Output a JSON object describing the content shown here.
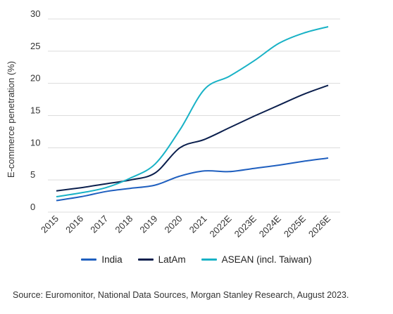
{
  "chart_data": {
    "type": "line",
    "ylabel": "E-commerce penetration (%)",
    "xlabel": "",
    "ylim": [
      0,
      30
    ],
    "yticks": [
      0,
      5,
      10,
      15,
      20,
      25,
      30
    ],
    "categories": [
      "2015",
      "2016",
      "2017",
      "2018",
      "2019",
      "2020",
      "2021",
      "2022E",
      "2023E",
      "2024E",
      "2025E",
      "2026E"
    ],
    "grid": "horizontal",
    "legend_position": "bottom",
    "series": [
      {
        "name": "India",
        "color": "#1f5fbf",
        "values": [
          1.8,
          2.4,
          3.2,
          3.7,
          4.2,
          5.6,
          6.4,
          6.3,
          6.8,
          7.3,
          7.9,
          8.4
        ]
      },
      {
        "name": "LatAm",
        "color": "#0b1f4d",
        "values": [
          3.3,
          3.8,
          4.4,
          5.0,
          6.1,
          10.0,
          11.3,
          13.1,
          14.9,
          16.6,
          18.3,
          19.7
        ]
      },
      {
        "name": "ASEAN (incl. Taiwan)",
        "color": "#19b2c6",
        "values": [
          2.4,
          3.0,
          3.8,
          5.3,
          7.5,
          12.8,
          19.1,
          21.1,
          23.5,
          26.2,
          27.8,
          28.8
        ]
      }
    ]
  },
  "legend": {
    "items": [
      {
        "label": "India",
        "color": "#1f5fbf"
      },
      {
        "label": "LatAm",
        "color": "#0b1f4d"
      },
      {
        "label": "ASEAN (incl. Taiwan)",
        "color": "#19b2c6"
      }
    ]
  },
  "source": "Source: Euromonitor, National Data Sources, Morgan Stanley Research, August 2023."
}
